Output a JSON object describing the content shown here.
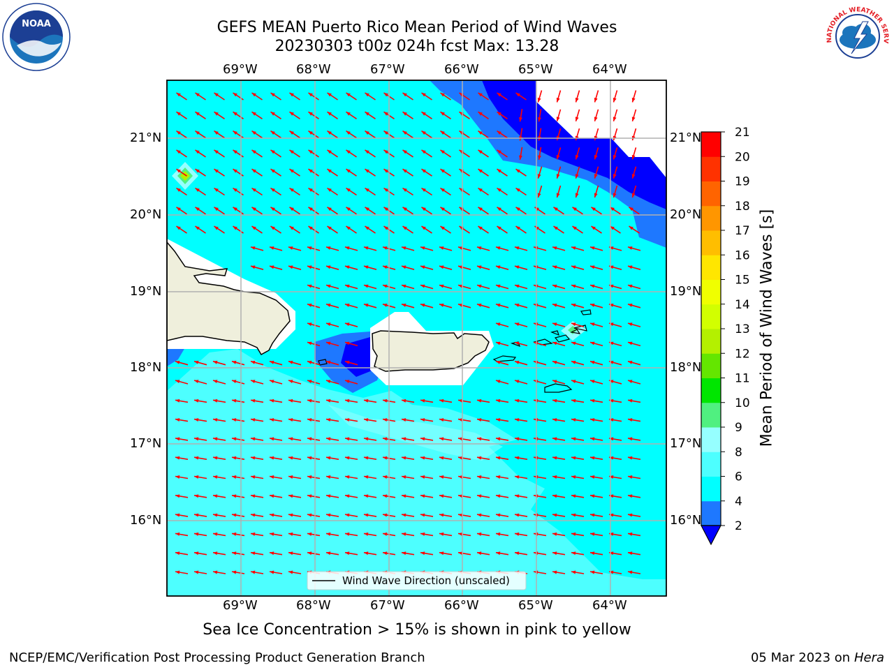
{
  "title": {
    "line1": "GEFS MEAN Puerto Rico Mean Period of Wind Waves",
    "line2": "20230303 t00z 024h fcst   Max: 13.28"
  },
  "logos": {
    "left": {
      "icon": "noaa-logo",
      "text": "NOAA"
    },
    "right": {
      "icon": "nws-logo",
      "text": "NATIONAL WEATHER SERVICE"
    }
  },
  "map": {
    "lon_labels": [
      "69°W",
      "68°W",
      "67°W",
      "66°W",
      "65°W",
      "64°W"
    ],
    "lat_labels": [
      "21°N",
      "20°N",
      "19°N",
      "18°N",
      "17°N",
      "16°N"
    ],
    "legend_label": "Wind Wave Direction (unscaled)",
    "arrow_color": "#ff0000"
  },
  "colorbar": {
    "label": "Mean Period of Wind Waves [s]",
    "ticks": [
      "2",
      "4",
      "6",
      "8",
      "9",
      "10",
      "11",
      "12",
      "13",
      "14",
      "15",
      "16",
      "17",
      "18",
      "19",
      "20",
      "21"
    ],
    "colors": [
      "#0000ff",
      "#1e78ff",
      "#00ffff",
      "#4dffff",
      "#96ffff",
      "#50f080",
      "#00e600",
      "#64e600",
      "#b4f000",
      "#d2ff00",
      "#f0ff00",
      "#ffe600",
      "#ffbe00",
      "#ff9600",
      "#ff6400",
      "#ff3200",
      "#ff0000"
    ],
    "under_color": "#0000ff"
  },
  "caption": "Sea Ice Concentration > 15% is shown in pink to yellow",
  "footer": {
    "left": "NCEP/EMC/Verification Post Processing Product Generation Branch",
    "right_date": "05 Mar 2023 on",
    "right_host": "Hera"
  }
}
